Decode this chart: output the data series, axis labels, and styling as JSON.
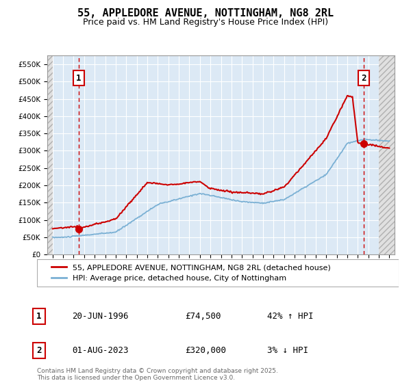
{
  "title": "55, APPLEDORE AVENUE, NOTTINGHAM, NG8 2RL",
  "subtitle": "Price paid vs. HM Land Registry's House Price Index (HPI)",
  "ylabel_ticks": [
    "£0",
    "£50K",
    "£100K",
    "£150K",
    "£200K",
    "£250K",
    "£300K",
    "£350K",
    "£400K",
    "£450K",
    "£500K",
    "£550K"
  ],
  "ylim": [
    0,
    575000
  ],
  "xlim_start": 1993.5,
  "xlim_end": 2026.5,
  "plot_bg_color": "#dce9f5",
  "hatch_bg_color": "#e8e8e8",
  "grid_color": "#ffffff",
  "red_line_color": "#cc0000",
  "blue_line_color": "#7ab0d4",
  "marker1_x": 1996.47,
  "marker1_y": 74500,
  "marker2_x": 2023.58,
  "marker2_y": 320000,
  "legend_label1": "55, APPLEDORE AVENUE, NOTTINGHAM, NG8 2RL (detached house)",
  "legend_label2": "HPI: Average price, detached house, City of Nottingham",
  "annotation1_label": "1",
  "annotation2_label": "2",
  "info1_num": "1",
  "info1_date": "20-JUN-1996",
  "info1_price": "£74,500",
  "info1_hpi": "42% ↑ HPI",
  "info2_num": "2",
  "info2_date": "01-AUG-2023",
  "info2_price": "£320,000",
  "info2_hpi": "3% ↓ HPI",
  "footer": "Contains HM Land Registry data © Crown copyright and database right 2025.\nThis data is licensed under the Open Government Licence v3.0.",
  "title_fontsize": 11,
  "subtitle_fontsize": 9
}
